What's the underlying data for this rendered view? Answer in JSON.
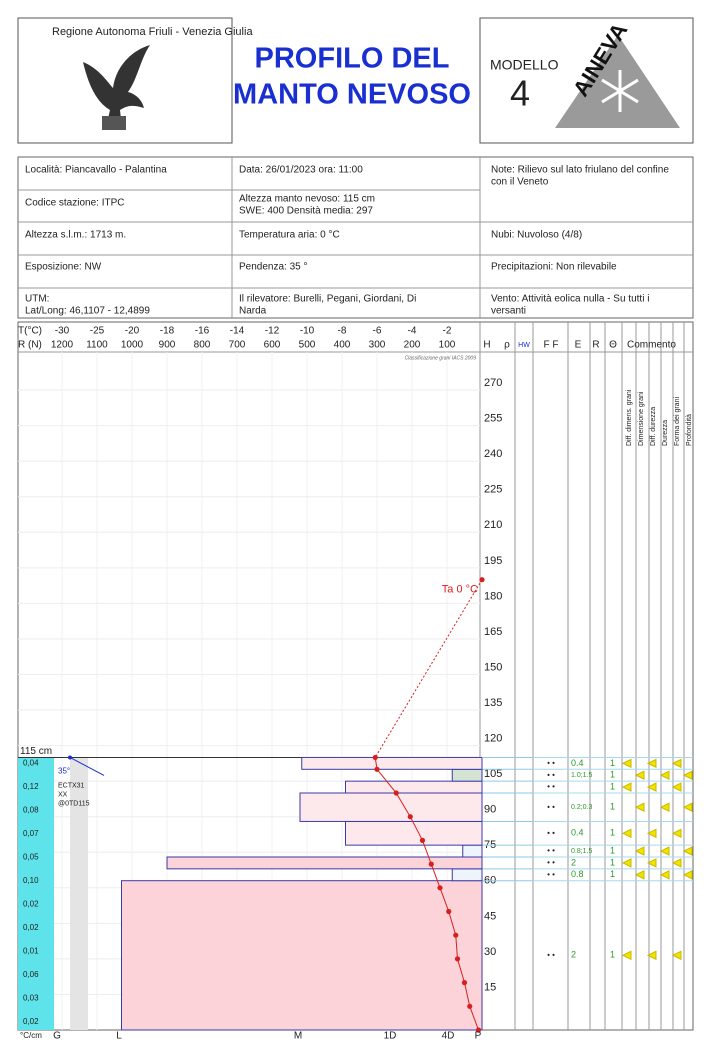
{
  "header": {
    "region": "Regione Autonoma Friuli - Venezia Giulia",
    "title_line1": "PROFILO DEL",
    "title_line2": "MANTO NEVOSO",
    "model_label": "MODELLO",
    "model_number": "4",
    "logo": "AINEVA"
  },
  "info": {
    "cells": [
      [
        "Località: Piancavallo - Palantina"
      ],
      [
        "Data: 26/01/2023   ora: 11:00"
      ],
      [
        "Note: Rilievo sul lato friulano del confine",
        "con il Veneto"
      ],
      [
        "Codice stazione: ITPC"
      ],
      [
        "Altezza manto nevoso: 115 cm",
        "SWE: 400        Densità media: 297"
      ],
      [
        "Altezza s.l.m.: 1713 m."
      ],
      [
        "Temperatura aria: 0 °C"
      ],
      [
        "Nubi: Nuvoloso (4/8)"
      ],
      [
        "Esposizione: NW"
      ],
      [
        "Pendenza: 35 °"
      ],
      [
        "Precipitazioni: Non rilevabile"
      ],
      [
        "UTM:",
        "Lat/Long: 46,1107 - 12,4899"
      ],
      [
        "Il rilevatore: Burelli, Pegani, Giordani, Di",
        "Narda"
      ],
      [
        "Vento: Attività eolica nulla - Su tutti i",
        "versanti"
      ]
    ]
  },
  "profile": {
    "t_label": "T(°C)",
    "r_label": "R (N)",
    "tticks": [
      -30,
      -25,
      -20,
      -18,
      -16,
      -14,
      -12,
      -10,
      -8,
      -6,
      -4,
      -2
    ],
    "rticks": [
      1200,
      1100,
      1000,
      900,
      800,
      700,
      600,
      500,
      400,
      300,
      200,
      100
    ],
    "columns": [
      "H",
      "ρ",
      "HW",
      "F F",
      "E",
      "R",
      "Θ",
      "Commento"
    ],
    "hticks": [
      15,
      30,
      45,
      60,
      75,
      90,
      105,
      120,
      135,
      150,
      165,
      180,
      195,
      210,
      225,
      240,
      255,
      270
    ],
    "classification": "Classificazione grani IACS 2009",
    "snow_height_label": "115 cm",
    "snow_height": 115,
    "layers": [
      {
        "bottom": 0,
        "top": 63,
        "hardness": 1030,
        "fill": "#fcd3d8",
        "E": "2",
        "theta": "1"
      },
      {
        "bottom": 63,
        "top": 68,
        "hardness": 85,
        "fill": "#eef4fb",
        "E": "0.8",
        "theta": "1"
      },
      {
        "bottom": 68,
        "top": 73,
        "hardness": 900,
        "fill": "#fcd3d8",
        "E": "2",
        "theta": "1"
      },
      {
        "bottom": 73,
        "top": 78,
        "hardness": 55,
        "fill": "#eef4fb",
        "E": "0.8;1.5",
        "theta": "1"
      },
      {
        "bottom": 78,
        "top": 88,
        "hardness": 390,
        "fill": "#fde8ec",
        "E": "0.4",
        "theta": "1"
      },
      {
        "bottom": 88,
        "top": 100,
        "hardness": 520,
        "fill": "#fde8ec",
        "E": "0.2;0.3",
        "theta": "1"
      },
      {
        "bottom": 100,
        "top": 105,
        "hardness": 390,
        "fill": "#fde8ec",
        "theta": "1"
      },
      {
        "bottom": 105,
        "top": 110,
        "hardness": 85,
        "fill": "#d3e4d3",
        "E": "1.0;1.5",
        "theta": "1"
      },
      {
        "bottom": 110,
        "top": 115,
        "hardness": 515,
        "fill": "#fde8ec",
        "E": "0.4",
        "theta": "1"
      }
    ],
    "temperature": {
      "color": "#d62020",
      "heights": [
        115,
        110,
        100,
        90,
        80,
        70,
        60,
        50,
        40,
        30,
        20,
        10,
        0
      ],
      "values": [
        -6.1,
        -6.0,
        -4.9,
        -4.1,
        -3.4,
        -2.9,
        -2.4,
        -1.9,
        -1.5,
        -1.4,
        -1.0,
        -0.7,
        -0.2
      ]
    },
    "air": {
      "height": 190,
      "value": 0,
      "label": "Ta 0 °C"
    },
    "gradient_unit": "°C/cm",
    "gradients": [
      "0,04",
      "0,12",
      "0,08",
      "0,07",
      "0,05",
      "0,10",
      "0,02",
      "0,02",
      "0,01",
      "0,06",
      "0,03",
      "0,02"
    ],
    "test": {
      "slope": "35°",
      "lines": [
        "ECTX31",
        "XX",
        "@0TD115"
      ]
    },
    "hardness_classes": [
      "G",
      "L",
      "M",
      "1D",
      "4D",
      "P"
    ],
    "comments": [
      "Diff. dimens. grani",
      "Dimensione grani",
      "Diff. durezza",
      "Durezza",
      "Forma dei grani",
      "Profondità"
    ]
  }
}
